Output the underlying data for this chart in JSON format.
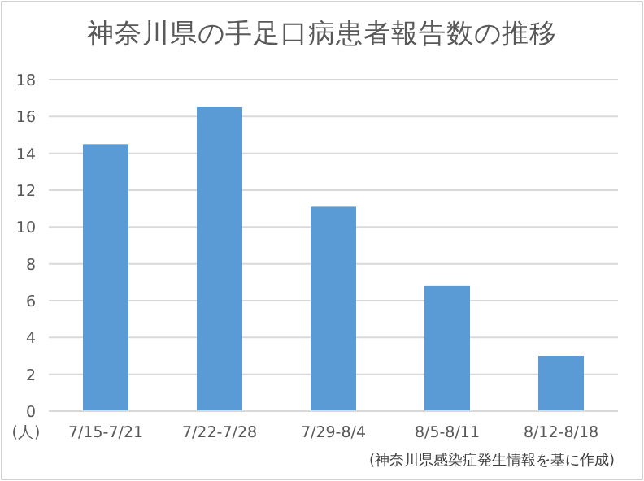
{
  "chart_data": {
    "type": "bar",
    "title": "神奈川県の手足口病患者報告数の推移",
    "ylabel": "(人)",
    "categories": [
      "7/15-7/21",
      "7/22-7/28",
      "7/29-8/4",
      "8/5-8/11",
      "8/12-8/18"
    ],
    "values": [
      14.5,
      16.5,
      11.1,
      6.8,
      3.0
    ],
    "color": "#5b9bd5",
    "ylim": [
      0,
      18
    ],
    "yticks": [
      0,
      2,
      4,
      6,
      8,
      10,
      12,
      14,
      16,
      18
    ],
    "grid": "y",
    "annotations": [
      "(神奈川県感染症発生情報を基に作成)"
    ]
  }
}
